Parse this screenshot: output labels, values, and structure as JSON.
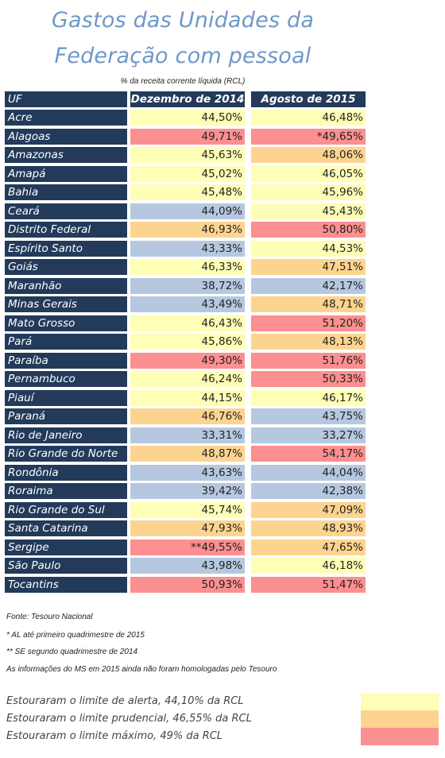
{
  "title_line1": "Gastos das Unidades da",
  "title_line2": "Federação com pessoal",
  "subtitle": "% da receita corrente líquida (RCL)",
  "colors": {
    "header": "#233a5a",
    "alerta": "#fefeb6",
    "prudencial": "#fdd48f",
    "maximo": "#fc8f8f",
    "abaixo": "#b6c8e0"
  },
  "chart_data": {
    "type": "table",
    "columns": [
      "UF",
      "Dezembro de 2014",
      "Agosto de 2015"
    ],
    "rows": [
      {
        "uf": "Acre",
        "dez": "44,50%",
        "dez_v": 44.5,
        "dez_c": "alerta",
        "ago": "46,48%",
        "ago_v": 46.48,
        "ago_c": "alerta"
      },
      {
        "uf": "Alagoas",
        "dez": "49,71%",
        "dez_v": 49.71,
        "dez_c": "maximo",
        "ago": "*49,65%",
        "ago_v": 49.65,
        "ago_c": "maximo"
      },
      {
        "uf": "Amazonas",
        "dez": "45,63%",
        "dez_v": 45.63,
        "dez_c": "alerta",
        "ago": "48,06%",
        "ago_v": 48.06,
        "ago_c": "prudencial"
      },
      {
        "uf": "Amapá",
        "dez": "45,02%",
        "dez_v": 45.02,
        "dez_c": "alerta",
        "ago": "46,05%",
        "ago_v": 46.05,
        "ago_c": "alerta"
      },
      {
        "uf": "Bahia",
        "dez": "45,48%",
        "dez_v": 45.48,
        "dez_c": "alerta",
        "ago": "45,96%",
        "ago_v": 45.96,
        "ago_c": "alerta"
      },
      {
        "uf": "Ceará",
        "dez": "44,09%",
        "dez_v": 44.09,
        "dez_c": "abaixo",
        "ago": "45,43%",
        "ago_v": 45.43,
        "ago_c": "alerta"
      },
      {
        "uf": "Distrito Federal",
        "dez": "46,93%",
        "dez_v": 46.93,
        "dez_c": "prudencial",
        "ago": "50,80%",
        "ago_v": 50.8,
        "ago_c": "maximo"
      },
      {
        "uf": "Espírito Santo",
        "dez": "43,33%",
        "dez_v": 43.33,
        "dez_c": "abaixo",
        "ago": "44,53%",
        "ago_v": 44.53,
        "ago_c": "alerta"
      },
      {
        "uf": "Goiás",
        "dez": "46,33%",
        "dez_v": 46.33,
        "dez_c": "alerta",
        "ago": "47,51%",
        "ago_v": 47.51,
        "ago_c": "prudencial"
      },
      {
        "uf": "Maranhão",
        "dez": "38,72%",
        "dez_v": 38.72,
        "dez_c": "abaixo",
        "ago": "42,17%",
        "ago_v": 42.17,
        "ago_c": "abaixo"
      },
      {
        "uf": "Minas Gerais",
        "dez": "43,49%",
        "dez_v": 43.49,
        "dez_c": "abaixo",
        "ago": "48,71%",
        "ago_v": 48.71,
        "ago_c": "prudencial"
      },
      {
        "uf": "Mato Grosso",
        "dez": "46,43%",
        "dez_v": 46.43,
        "dez_c": "alerta",
        "ago": "51,20%",
        "ago_v": 51.2,
        "ago_c": "maximo"
      },
      {
        "uf": "Pará",
        "dez": "45,86%",
        "dez_v": 45.86,
        "dez_c": "alerta",
        "ago": "48,13%",
        "ago_v": 48.13,
        "ago_c": "prudencial"
      },
      {
        "uf": "Paraíba",
        "dez": "49,30%",
        "dez_v": 49.3,
        "dez_c": "maximo",
        "ago": "51,76%",
        "ago_v": 51.76,
        "ago_c": "maximo"
      },
      {
        "uf": "Pernambuco",
        "dez": "46,24%",
        "dez_v": 46.24,
        "dez_c": "alerta",
        "ago": "50,33%",
        "ago_v": 50.33,
        "ago_c": "maximo"
      },
      {
        "uf": "Piauí",
        "dez": "44,15%",
        "dez_v": 44.15,
        "dez_c": "alerta",
        "ago": "46,17%",
        "ago_v": 46.17,
        "ago_c": "alerta"
      },
      {
        "uf": "Paraná",
        "dez": "46,76%",
        "dez_v": 46.76,
        "dez_c": "prudencial",
        "ago": "43,75%",
        "ago_v": 43.75,
        "ago_c": "abaixo"
      },
      {
        "uf": "Rio de Janeiro",
        "dez": "33,31%",
        "dez_v": 33.31,
        "dez_c": "abaixo",
        "ago": "33,27%",
        "ago_v": 33.27,
        "ago_c": "abaixo"
      },
      {
        "uf": "Rio Grande do Norte",
        "dez": "48,87%",
        "dez_v": 48.87,
        "dez_c": "prudencial",
        "ago": "54,17%",
        "ago_v": 54.17,
        "ago_c": "maximo"
      },
      {
        "uf": "Rondônia",
        "dez": "43,63%",
        "dez_v": 43.63,
        "dez_c": "abaixo",
        "ago": "44,04%",
        "ago_v": 44.04,
        "ago_c": "abaixo"
      },
      {
        "uf": "Roraima",
        "dez": "39,42%",
        "dez_v": 39.42,
        "dez_c": "abaixo",
        "ago": "42,38%",
        "ago_v": 42.38,
        "ago_c": "abaixo"
      },
      {
        "uf": "Rio Grande do Sul",
        "dez": "45,74%",
        "dez_v": 45.74,
        "dez_c": "alerta",
        "ago": "47,09%",
        "ago_v": 47.09,
        "ago_c": "prudencial"
      },
      {
        "uf": "Santa Catarina",
        "dez": "47,93%",
        "dez_v": 47.93,
        "dez_c": "prudencial",
        "ago": "48,93%",
        "ago_v": 48.93,
        "ago_c": "prudencial"
      },
      {
        "uf": "Sergipe",
        "dez": "**49,55%",
        "dez_v": 49.55,
        "dez_c": "maximo",
        "ago": "47,65%",
        "ago_v": 47.65,
        "ago_c": "prudencial"
      },
      {
        "uf": "São Paulo",
        "dez": "43,98%",
        "dez_v": 43.98,
        "dez_c": "abaixo",
        "ago": "46,18%",
        "ago_v": 46.18,
        "ago_c": "alerta"
      },
      {
        "uf": "Tocantins",
        "dez": "50,93%",
        "dez_v": 50.93,
        "dez_c": "maximo",
        "ago": "51,47%",
        "ago_v": 51.47,
        "ago_c": "maximo"
      }
    ]
  },
  "footnotes": {
    "source": "Fonte: Tesouro Nacional",
    "note1": "* AL até primeiro quadrimestre de 2015",
    "note2": "** SE segundo quadrimestre de 2014",
    "note3": "As informações do MS em 2015 ainda não foram homologadas pelo Tesouro"
  },
  "legend": [
    {
      "label": "Estouraram o limite de alerta, 44,10% da RCL",
      "color": "#fefeb6"
    },
    {
      "label": "Estouraram o limite prudencial, 46,55% da RCL",
      "color": "#fdd48f"
    },
    {
      "label": "Estouraram o limite máximo, 49% da RCL",
      "color": "#fc8f8f"
    }
  ]
}
